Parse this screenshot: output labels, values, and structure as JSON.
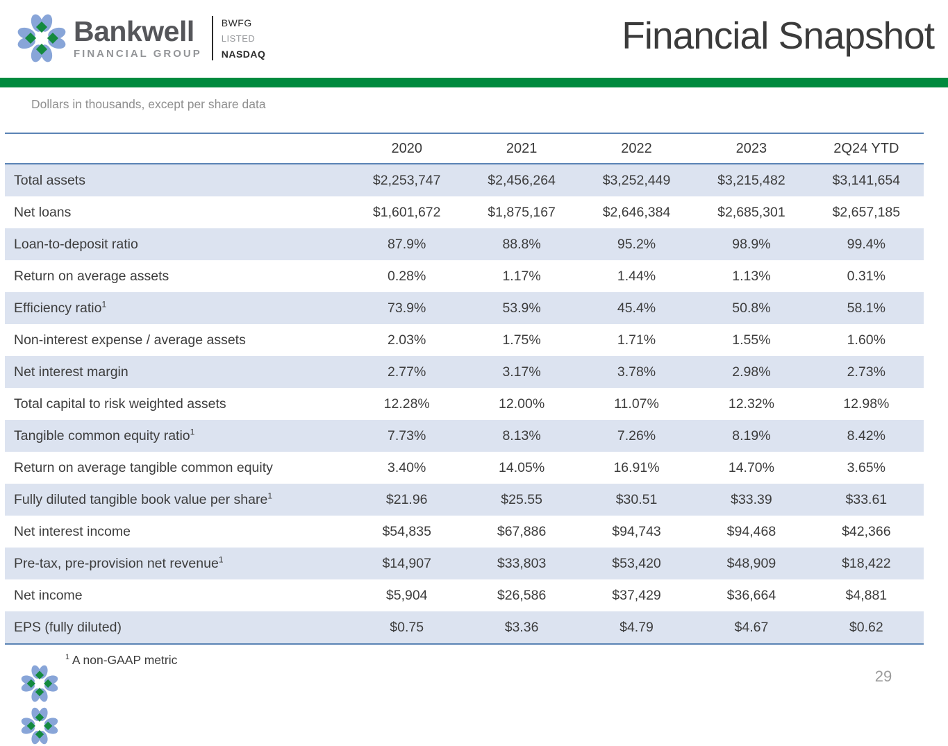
{
  "header": {
    "brand": {
      "name": "Bankwell",
      "subname": "FINANCIAL GROUP",
      "ticker": "BWFG",
      "listed_label": "LISTED",
      "exchange": "NASDAQ"
    },
    "title": "Financial Snapshot"
  },
  "subtitle": "Dollars in thousands, except per share data",
  "table": {
    "columns": [
      "2020",
      "2021",
      "2022",
      "2023",
      "2Q24 YTD"
    ],
    "rows": [
      {
        "label": "Total assets",
        "sup": "",
        "values": [
          "$2,253,747",
          "$2,456,264",
          "$3,252,449",
          "$3,215,482",
          "$3,141,654"
        ]
      },
      {
        "label": "Net loans",
        "sup": "",
        "values": [
          "$1,601,672",
          "$1,875,167",
          "$2,646,384",
          "$2,685,301",
          "$2,657,185"
        ]
      },
      {
        "label": "Loan-to-deposit ratio",
        "sup": "",
        "values": [
          "87.9%",
          "88.8%",
          "95.2%",
          "98.9%",
          "99.4%"
        ]
      },
      {
        "label": "Return on average assets",
        "sup": "",
        "values": [
          "0.28%",
          "1.17%",
          "1.44%",
          "1.13%",
          "0.31%"
        ]
      },
      {
        "label": "Efficiency ratio",
        "sup": "1",
        "values": [
          "73.9%",
          "53.9%",
          "45.4%",
          "50.8%",
          "58.1%"
        ]
      },
      {
        "label": "Non-interest expense / average assets",
        "sup": "",
        "values": [
          "2.03%",
          "1.75%",
          "1.71%",
          "1.55%",
          "1.60%"
        ]
      },
      {
        "label": "Net interest margin",
        "sup": "",
        "values": [
          "2.77%",
          "3.17%",
          "3.78%",
          "2.98%",
          "2.73%"
        ]
      },
      {
        "label": "Total capital to risk weighted assets",
        "sup": "",
        "values": [
          "12.28%",
          "12.00%",
          "11.07%",
          "12.32%",
          "12.98%"
        ]
      },
      {
        "label": "Tangible common equity ratio",
        "sup": "1",
        "values": [
          "7.73%",
          "8.13%",
          "7.26%",
          "8.19%",
          "8.42%"
        ]
      },
      {
        "label": "Return on average tangible common equity",
        "sup": "",
        "values": [
          "3.40%",
          "14.05%",
          "16.91%",
          "14.70%",
          "3.65%"
        ]
      },
      {
        "label": "Fully diluted tangible book value per share",
        "sup": "1",
        "values": [
          "$21.96",
          "$25.55",
          "$30.51",
          "$33.39",
          "$33.61"
        ]
      },
      {
        "label": "Net interest income",
        "sup": "",
        "values": [
          "$54,835",
          "$67,886",
          "$94,743",
          "$94,468",
          "$42,366"
        ]
      },
      {
        "label": "Pre-tax, pre-provision net revenue",
        "sup": "1",
        "values": [
          "$14,907",
          "$33,803",
          "$53,420",
          "$48,909",
          "$18,422"
        ]
      },
      {
        "label": "Net income",
        "sup": "",
        "values": [
          "$5,904",
          "$26,586",
          "$37,429",
          "$36,664",
          "$4,881"
        ]
      },
      {
        "label": "EPS (fully diluted)",
        "sup": "",
        "values": [
          "$0.75",
          "$3.36",
          "$4.79",
          "$4.67",
          "$0.62"
        ]
      }
    ]
  },
  "footer": {
    "footnote_sup": "1",
    "footnote_text": " A non-GAAP metric",
    "page_number": "29"
  },
  "colors": {
    "accent_green": "#008A3E",
    "row_alt_blue": "#dce3f0",
    "table_border_blue": "#5b84b5",
    "logo_petal_blue": "#88a5d8",
    "logo_diamond_green": "#148a3f",
    "title_gray": "#3b3b3b"
  }
}
